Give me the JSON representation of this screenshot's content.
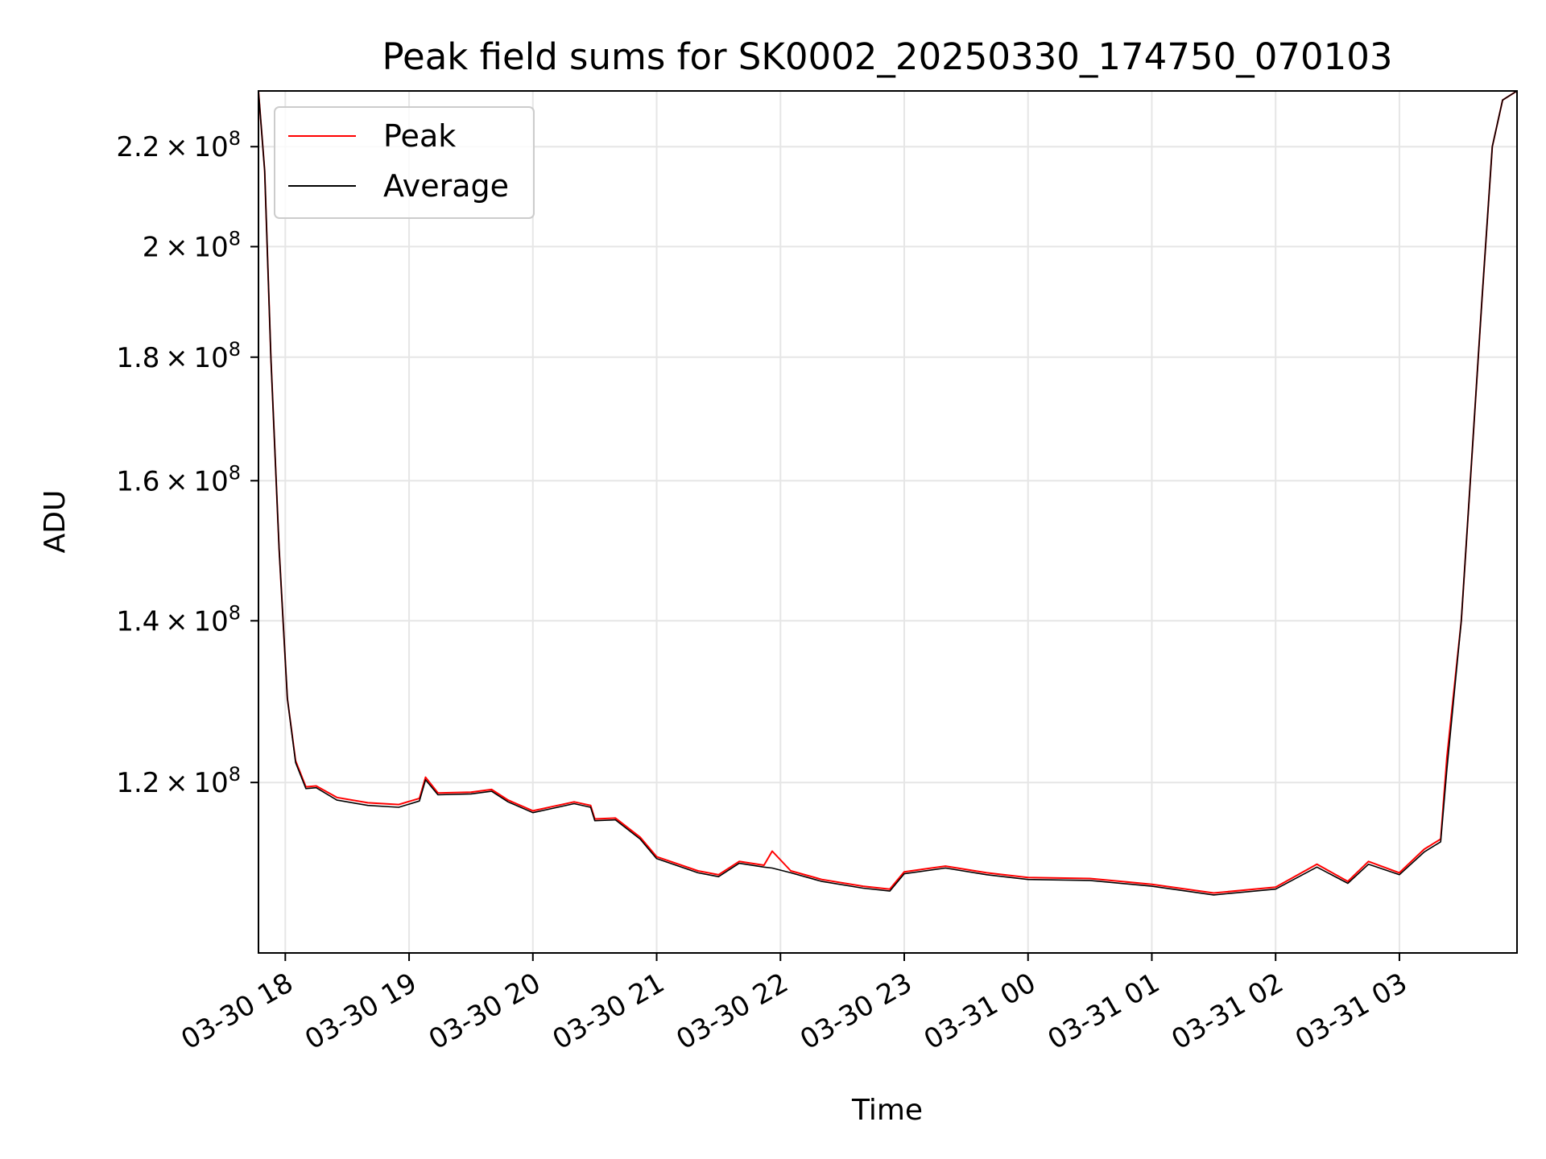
{
  "chart_data": {
    "type": "line",
    "title": "Peak field sums for SK0002_20250330_174750_070103",
    "xlabel": "Time",
    "ylabel": "ADU",
    "yscale": "log",
    "xlim": [
      "2025-03-30 17:47",
      "2025-03-31 03:57"
    ],
    "ylim": [
      102000000,
      232000000
    ],
    "grid": true,
    "legend_position": "top-left",
    "x_ticks": [
      "03-30 18",
      "03-30 19",
      "03-30 20",
      "03-30 21",
      "03-30 22",
      "03-30 23",
      "03-31 00",
      "03-31 01",
      "03-31 02",
      "03-31 03"
    ],
    "y_ticks": [
      {
        "value": 120000000,
        "mantissa": "1.2",
        "exponent": "8"
      },
      {
        "value": 140000000,
        "mantissa": "1.4",
        "exponent": "8"
      },
      {
        "value": 160000000,
        "mantissa": "1.6",
        "exponent": "8"
      },
      {
        "value": 180000000,
        "mantissa": "1.8",
        "exponent": "8"
      },
      {
        "value": 200000000,
        "mantissa": "2",
        "exponent": "8"
      },
      {
        "value": 220000000,
        "mantissa": "2.2",
        "exponent": "8"
      }
    ],
    "times_label_tex_sep": "×",
    "tick_base": "10",
    "series": [
      {
        "name": "Peak",
        "color": "#ff0000",
        "points": [
          [
            "2025-03-30 17:47",
            232000000
          ],
          [
            "2025-03-30 17:50",
            215000000
          ],
          [
            "2025-03-30 17:53",
            180000000
          ],
          [
            "2025-03-30 17:57",
            150000000
          ],
          [
            "2025-03-30 18:01",
            130000000
          ],
          [
            "2025-03-30 18:05",
            122500000
          ],
          [
            "2025-03-30 18:10",
            119500000
          ],
          [
            "2025-03-30 18:15",
            119600000
          ],
          [
            "2025-03-30 18:25",
            118300000
          ],
          [
            "2025-03-30 18:40",
            117700000
          ],
          [
            "2025-03-30 18:55",
            117500000
          ],
          [
            "2025-03-30 19:05",
            118200000
          ],
          [
            "2025-03-30 19:08",
            120600000
          ],
          [
            "2025-03-30 19:14",
            118800000
          ],
          [
            "2025-03-30 19:30",
            118900000
          ],
          [
            "2025-03-30 19:40",
            119200000
          ],
          [
            "2025-03-30 19:48",
            118000000
          ],
          [
            "2025-03-30 20:00",
            116800000
          ],
          [
            "2025-03-30 20:10",
            117300000
          ],
          [
            "2025-03-30 20:20",
            117800000
          ],
          [
            "2025-03-30 20:28",
            117400000
          ],
          [
            "2025-03-30 20:30",
            115900000
          ],
          [
            "2025-03-30 20:40",
            116000000
          ],
          [
            "2025-03-30 20:52",
            113900000
          ],
          [
            "2025-03-30 21:00",
            111800000
          ],
          [
            "2025-03-30 21:20",
            110300000
          ],
          [
            "2025-03-30 21:30",
            109900000
          ],
          [
            "2025-03-30 21:40",
            111300000
          ],
          [
            "2025-03-30 21:52",
            110900000
          ],
          [
            "2025-03-30 21:56",
            112400000
          ],
          [
            "2025-03-30 22:05",
            110300000
          ],
          [
            "2025-03-30 22:20",
            109400000
          ],
          [
            "2025-03-30 22:40",
            108700000
          ],
          [
            "2025-03-30 22:53",
            108400000
          ],
          [
            "2025-03-30 23:00",
            110200000
          ],
          [
            "2025-03-30 23:20",
            110800000
          ],
          [
            "2025-03-30 23:40",
            110100000
          ],
          [
            "2025-03-31 00:00",
            109600000
          ],
          [
            "2025-03-31 00:30",
            109500000
          ],
          [
            "2025-03-31 01:00",
            108900000
          ],
          [
            "2025-03-31 01:30",
            108000000
          ],
          [
            "2025-03-31 02:00",
            108600000
          ],
          [
            "2025-03-31 02:20",
            111000000
          ],
          [
            "2025-03-31 02:35",
            109200000
          ],
          [
            "2025-03-31 02:45",
            111300000
          ],
          [
            "2025-03-31 03:00",
            110100000
          ],
          [
            "2025-03-31 03:12",
            112600000
          ],
          [
            "2025-03-31 03:20",
            113700000
          ],
          [
            "2025-03-31 03:23",
            122900000
          ],
          [
            "2025-03-31 03:30",
            140000000
          ],
          [
            "2025-03-31 03:35",
            163000000
          ],
          [
            "2025-03-31 03:40",
            190000000
          ],
          [
            "2025-03-31 03:45",
            220000000
          ],
          [
            "2025-03-31 03:50",
            230000000
          ],
          [
            "2025-03-31 03:57",
            232000000
          ]
        ]
      },
      {
        "name": "Average",
        "color": "#000000",
        "points": [
          [
            "2025-03-30 17:47",
            232000000
          ],
          [
            "2025-03-30 17:50",
            215000000
          ],
          [
            "2025-03-30 17:53",
            180000000
          ],
          [
            "2025-03-30 17:57",
            150000000
          ],
          [
            "2025-03-30 18:01",
            130000000
          ],
          [
            "2025-03-30 18:05",
            122300000
          ],
          [
            "2025-03-30 18:10",
            119300000
          ],
          [
            "2025-03-30 18:15",
            119400000
          ],
          [
            "2025-03-30 18:25",
            118000000
          ],
          [
            "2025-03-30 18:40",
            117400000
          ],
          [
            "2025-03-30 18:55",
            117200000
          ],
          [
            "2025-03-30 19:05",
            117900000
          ],
          [
            "2025-03-30 19:08",
            120300000
          ],
          [
            "2025-03-30 19:14",
            118600000
          ],
          [
            "2025-03-30 19:30",
            118700000
          ],
          [
            "2025-03-30 19:40",
            119000000
          ],
          [
            "2025-03-30 19:48",
            117800000
          ],
          [
            "2025-03-30 20:00",
            116600000
          ],
          [
            "2025-03-30 20:10",
            117100000
          ],
          [
            "2025-03-30 20:20",
            117600000
          ],
          [
            "2025-03-30 20:28",
            117200000
          ],
          [
            "2025-03-30 20:30",
            115700000
          ],
          [
            "2025-03-30 20:40",
            115800000
          ],
          [
            "2025-03-30 20:52",
            113700000
          ],
          [
            "2025-03-30 21:00",
            111600000
          ],
          [
            "2025-03-30 21:20",
            110100000
          ],
          [
            "2025-03-30 21:30",
            109700000
          ],
          [
            "2025-03-30 21:40",
            111100000
          ],
          [
            "2025-03-30 21:52",
            110700000
          ],
          [
            "2025-03-30 21:56",
            110600000
          ],
          [
            "2025-03-30 22:05",
            110100000
          ],
          [
            "2025-03-30 22:20",
            109200000
          ],
          [
            "2025-03-30 22:40",
            108500000
          ],
          [
            "2025-03-30 22:53",
            108200000
          ],
          [
            "2025-03-30 23:00",
            110000000
          ],
          [
            "2025-03-30 23:20",
            110600000
          ],
          [
            "2025-03-30 23:40",
            109900000
          ],
          [
            "2025-03-31 00:00",
            109400000
          ],
          [
            "2025-03-31 00:30",
            109300000
          ],
          [
            "2025-03-31 01:00",
            108700000
          ],
          [
            "2025-03-31 01:30",
            107800000
          ],
          [
            "2025-03-31 02:00",
            108400000
          ],
          [
            "2025-03-31 02:20",
            110700000
          ],
          [
            "2025-03-31 02:35",
            109000000
          ],
          [
            "2025-03-31 02:45",
            111000000
          ],
          [
            "2025-03-31 03:00",
            109900000
          ],
          [
            "2025-03-31 03:12",
            112300000
          ],
          [
            "2025-03-31 03:20",
            113400000
          ],
          [
            "2025-03-31 03:23",
            121500000
          ],
          [
            "2025-03-31 03:30",
            140000000
          ],
          [
            "2025-03-31 03:35",
            163000000
          ],
          [
            "2025-03-31 03:40",
            190000000
          ],
          [
            "2025-03-31 03:45",
            220000000
          ],
          [
            "2025-03-31 03:50",
            230000000
          ],
          [
            "2025-03-31 03:57",
            232000000
          ]
        ]
      }
    ]
  }
}
